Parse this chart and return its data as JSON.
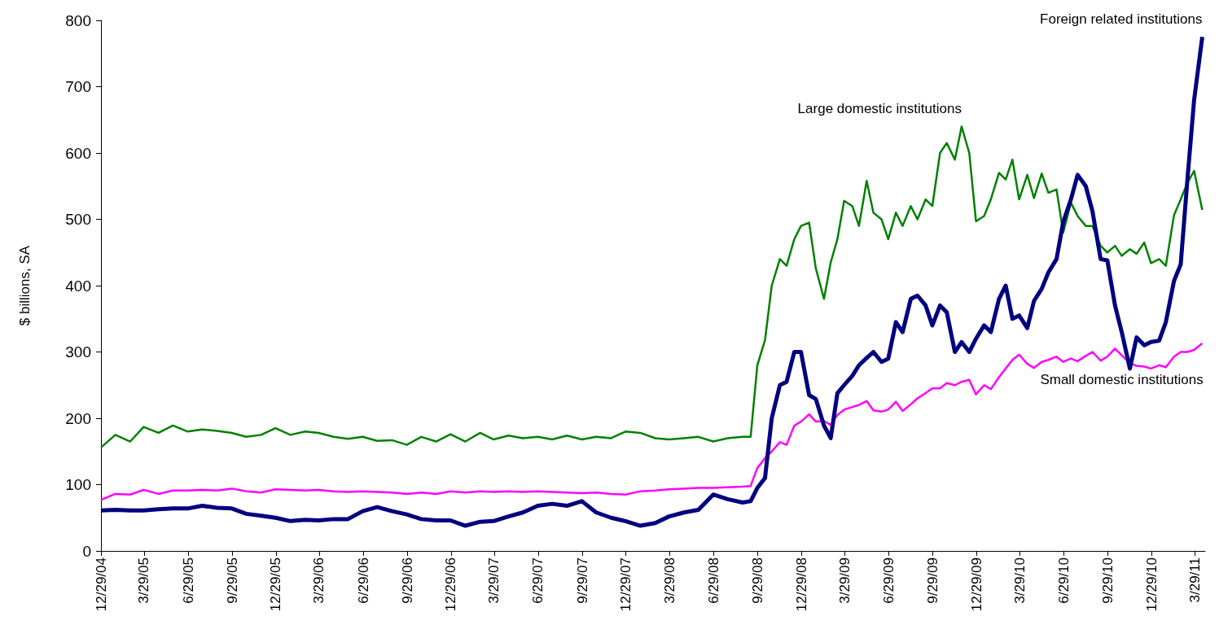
{
  "chart_data": {
    "type": "line",
    "ylabel": "$ billions, SA",
    "marker": "none",
    "grid": false,
    "x": [
      "2004-12-29",
      "2005-01-28",
      "2005-02-28",
      "2005-03-28",
      "2005-04-28",
      "2005-05-28",
      "2005-06-28",
      "2005-07-28",
      "2005-08-28",
      "2005-09-28",
      "2005-10-28",
      "2005-11-28",
      "2005-12-28",
      "2006-01-28",
      "2006-02-28",
      "2006-03-28",
      "2006-04-28",
      "2006-05-28",
      "2006-06-28",
      "2006-07-28",
      "2006-08-28",
      "2006-09-28",
      "2006-10-28",
      "2006-11-28",
      "2006-12-28",
      "2007-01-28",
      "2007-02-28",
      "2007-03-28",
      "2007-04-28",
      "2007-05-28",
      "2007-06-28",
      "2007-07-28",
      "2007-08-28",
      "2007-09-28",
      "2007-10-28",
      "2007-11-28",
      "2007-12-28",
      "2008-01-28",
      "2008-02-28",
      "2008-03-28",
      "2008-04-28",
      "2008-05-28",
      "2008-06-28",
      "2008-07-28",
      "2008-08-28",
      "2008-09-14",
      "2008-09-28",
      "2008-10-14",
      "2008-10-28",
      "2008-11-14",
      "2008-11-28",
      "2008-12-14",
      "2008-12-28",
      "2009-01-14",
      "2009-01-28",
      "2009-02-14",
      "2009-02-28",
      "2009-03-14",
      "2009-03-28",
      "2009-04-14",
      "2009-04-28",
      "2009-05-14",
      "2009-05-28",
      "2009-06-14",
      "2009-06-28",
      "2009-07-14",
      "2009-07-28",
      "2009-08-14",
      "2009-08-28",
      "2009-09-14",
      "2009-09-28",
      "2009-10-14",
      "2009-10-28",
      "2009-11-14",
      "2009-11-28",
      "2009-12-14",
      "2009-12-28",
      "2010-01-14",
      "2010-01-28",
      "2010-02-14",
      "2010-02-28",
      "2010-03-14",
      "2010-03-28",
      "2010-04-14",
      "2010-04-28",
      "2010-05-14",
      "2010-05-28",
      "2010-06-14",
      "2010-06-28",
      "2010-07-14",
      "2010-07-28",
      "2010-08-14",
      "2010-08-28",
      "2010-09-14",
      "2010-09-28",
      "2010-10-14",
      "2010-10-28",
      "2010-11-14",
      "2010-11-28",
      "2010-12-14",
      "2010-12-28",
      "2011-01-14",
      "2011-01-28",
      "2011-02-14",
      "2011-02-28",
      "2011-03-14",
      "2011-03-28",
      "2011-04-14"
    ],
    "series": [
      {
        "name": "Large domestic institutions",
        "color": "#008000",
        "values": [
          156,
          175,
          165,
          187,
          178,
          189,
          180,
          183,
          181,
          178,
          172,
          175,
          185,
          175,
          180,
          178,
          172,
          169,
          172,
          166,
          167,
          160,
          172,
          165,
          176,
          165,
          178,
          168,
          174,
          170,
          172,
          168,
          174,
          168,
          172,
          170,
          180,
          178,
          170,
          168,
          170,
          172,
          165,
          170,
          172,
          172,
          280,
          318,
          400,
          440,
          430,
          470,
          490,
          495,
          426,
          380,
          435,
          470,
          528,
          520,
          490,
          558,
          510,
          500,
          470,
          510,
          490,
          520,
          500,
          530,
          520,
          600,
          615,
          590,
          640,
          600,
          497,
          505,
          530,
          570,
          560,
          590,
          530,
          567,
          532,
          569,
          540,
          545,
          480,
          525,
          505,
          490,
          490,
          460,
          450,
          460,
          445,
          455,
          448,
          465,
          434,
          440,
          430,
          506,
          530,
          555,
          573,
          514
        ]
      },
      {
        "name": "Small domestic institutions",
        "color": "#ff00ff",
        "values": [
          77,
          86,
          85,
          92,
          86,
          91,
          91,
          92,
          91,
          94,
          90,
          88,
          93,
          92,
          91,
          92,
          90,
          89,
          90,
          89,
          88,
          86,
          88,
          86,
          90,
          88,
          90,
          89,
          90,
          89,
          90,
          89,
          88,
          87,
          88,
          86,
          85,
          90,
          91,
          93,
          94,
          95,
          95,
          96,
          97,
          98,
          125,
          140,
          150,
          164,
          160,
          189,
          195,
          206,
          195,
          196,
          190,
          205,
          213,
          217,
          220,
          226,
          212,
          210,
          213,
          225,
          211,
          221,
          230,
          238,
          245,
          245,
          253,
          250,
          255,
          258,
          236,
          250,
          244,
          262,
          275,
          288,
          296,
          282,
          276,
          285,
          288,
          293,
          285,
          290,
          286,
          294,
          300,
          287,
          293,
          305,
          295,
          283,
          279,
          278,
          275,
          280,
          277,
          293,
          300,
          300,
          303,
          313
        ]
      },
      {
        "name": "Foreign related institutions",
        "color": "#000080",
        "values": [
          61,
          62,
          61,
          61,
          63,
          64,
          64,
          68,
          65,
          64,
          56,
          53,
          50,
          45,
          47,
          46,
          48,
          48,
          60,
          66,
          60,
          55,
          48,
          46,
          46,
          38,
          44,
          45,
          52,
          58,
          68,
          71,
          68,
          75,
          58,
          50,
          45,
          38,
          42,
          52,
          58,
          62,
          85,
          78,
          73,
          75,
          95,
          110,
          200,
          250,
          255,
          300,
          300,
          235,
          229,
          189,
          170,
          238,
          250,
          264,
          280,
          291,
          300,
          285,
          290,
          345,
          330,
          380,
          385,
          370,
          340,
          370,
          360,
          300,
          315,
          300,
          320,
          340,
          330,
          380,
          400,
          350,
          355,
          336,
          377,
          395,
          420,
          440,
          496,
          530,
          567,
          550,
          512,
          440,
          438,
          370,
          330,
          275,
          322,
          310,
          315,
          317,
          345,
          407,
          432,
          560,
          680,
          775
        ]
      }
    ],
    "ylim": [
      0,
      800
    ],
    "yticks": [
      0,
      100,
      200,
      300,
      400,
      500,
      600,
      700,
      800
    ],
    "xlim": [
      "2004-12-29",
      "2011-04-20"
    ],
    "xticks": [
      {
        "value": "2004-12-29",
        "label": "12/29/04"
      },
      {
        "value": "2005-03-29",
        "label": "3/29/05"
      },
      {
        "value": "2005-06-29",
        "label": "6/29/05"
      },
      {
        "value": "2005-09-29",
        "label": "9/29/05"
      },
      {
        "value": "2005-12-29",
        "label": "12/29/05"
      },
      {
        "value": "2006-03-29",
        "label": "3/29/06"
      },
      {
        "value": "2006-06-29",
        "label": "6/29/06"
      },
      {
        "value": "2006-09-29",
        "label": "9/29/06"
      },
      {
        "value": "2006-12-29",
        "label": "12/29/06"
      },
      {
        "value": "2007-03-29",
        "label": "3/29/07"
      },
      {
        "value": "2007-06-29",
        "label": "6/29/07"
      },
      {
        "value": "2007-09-29",
        "label": "9/29/07"
      },
      {
        "value": "2007-12-29",
        "label": "12/29/07"
      },
      {
        "value": "2008-03-29",
        "label": "3/29/08"
      },
      {
        "value": "2008-06-29",
        "label": "6/29/08"
      },
      {
        "value": "2008-09-29",
        "label": "9/29/08"
      },
      {
        "value": "2008-12-29",
        "label": "12/29/08"
      },
      {
        "value": "2009-03-29",
        "label": "3/29/09"
      },
      {
        "value": "2009-06-29",
        "label": "6/29/09"
      },
      {
        "value": "2009-09-29",
        "label": "9/29/09"
      },
      {
        "value": "2009-12-29",
        "label": "12/29/09"
      },
      {
        "value": "2010-03-29",
        "label": "3/29/10"
      },
      {
        "value": "2010-06-29",
        "label": "6/29/10"
      },
      {
        "value": "2010-09-29",
        "label": "9/29/10"
      },
      {
        "value": "2010-12-29",
        "label": "12/29/10"
      },
      {
        "value": "2011-03-29",
        "label": "3/29/11"
      }
    ]
  }
}
